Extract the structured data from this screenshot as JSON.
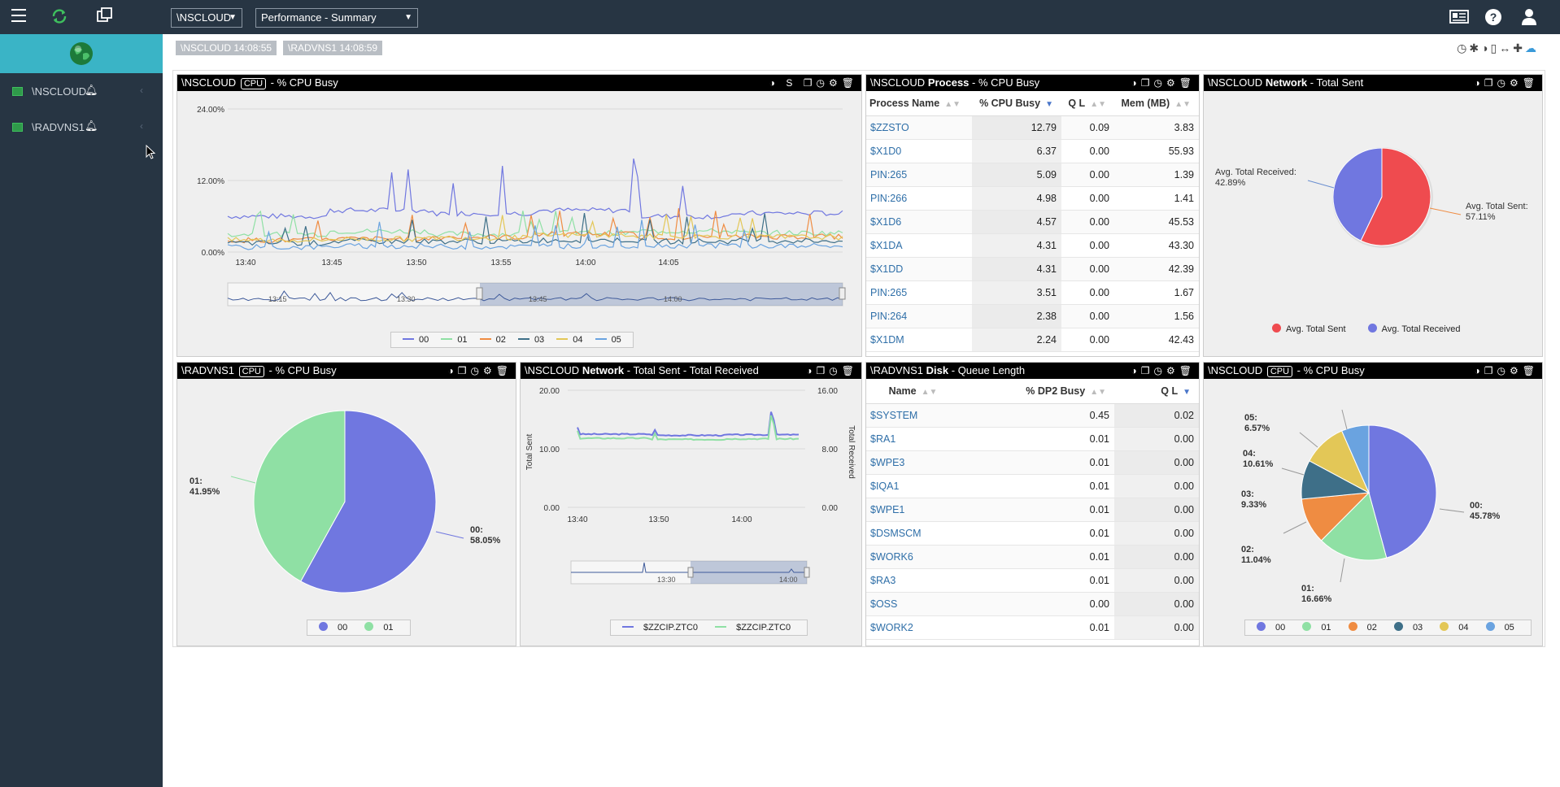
{
  "topbar": {
    "system_select": "\\NSCLOUD",
    "view_select": "Performance - Summary"
  },
  "sidebar": {
    "items": [
      {
        "label": "\\NSCLOUD"
      },
      {
        "label": "\\RADVNS1"
      }
    ]
  },
  "timestamps": [
    "\\NSCLOUD  14:08:55",
    "\\RADVNS1  14:08:59"
  ],
  "panels": {
    "cpu1": {
      "system": "\\NSCLOUD",
      "tag": "CPU",
      "title": "- % CPU Busy",
      "s_label": "S",
      "yticks": [
        "24.00%",
        "12.00%",
        "0.00%"
      ],
      "xticks": [
        "13:40",
        "13:45",
        "13:50",
        "13:55",
        "14:00",
        "14:05"
      ],
      "nav_ticks": [
        "13:15",
        "13:30",
        "13:45",
        "14:00"
      ],
      "legend": [
        "00",
        "01",
        "02",
        "03",
        "04",
        "05"
      ]
    },
    "process": {
      "system": "\\NSCLOUD",
      "bold": "Process",
      "title": "- % CPU Busy",
      "columns": [
        "Process Name",
        "% CPU Busy",
        "Q L",
        "Mem (MB)"
      ],
      "rows": [
        [
          "$ZZSTO",
          "12.79",
          "0.09",
          "3.83"
        ],
        [
          "$X1D0",
          "6.37",
          "0.00",
          "55.93"
        ],
        [
          "PIN:265",
          "5.09",
          "0.00",
          "1.39"
        ],
        [
          "PIN:266",
          "4.98",
          "0.00",
          "1.41"
        ],
        [
          "$X1D6",
          "4.57",
          "0.00",
          "45.53"
        ],
        [
          "$X1DA",
          "4.31",
          "0.00",
          "43.30"
        ],
        [
          "$X1DD",
          "4.31",
          "0.00",
          "42.39"
        ],
        [
          "PIN:265",
          "3.51",
          "0.00",
          "1.67"
        ],
        [
          "PIN:264",
          "2.38",
          "0.00",
          "1.56"
        ],
        [
          "$X1DM",
          "2.24",
          "0.00",
          "42.43"
        ]
      ]
    },
    "network_sent": {
      "system": "\\NSCLOUD",
      "bold": "Network",
      "title": "- Total Sent",
      "label_received": "Avg. Total Received:",
      "label_received_val": "42.89%",
      "label_sent": "Avg. Total Sent:",
      "label_sent_val": "57.11%",
      "legend": [
        "Avg. Total Sent",
        "Avg. Total Received"
      ]
    },
    "cpu2": {
      "system": "\\RADVNS1",
      "tag": "CPU",
      "title": "- % CPU Busy",
      "lbl01": "01:",
      "lbl01v": "41.95%",
      "lbl00": "00:",
      "lbl00v": "58.05%",
      "legend": [
        "00",
        "01"
      ]
    },
    "network_tr": {
      "system": "\\NSCLOUD",
      "bold": "Network",
      "title": "- Total Sent - Total Received",
      "yleft": [
        "20.00",
        "10.00",
        "0.00"
      ],
      "yright": [
        "16.00",
        "8.00",
        "0.00"
      ],
      "ylabel_left": "Total Sent",
      "ylabel_right": "Total Received",
      "xticks": [
        "13:40",
        "13:50",
        "14:00"
      ],
      "nav_ticks": [
        "13:30",
        "14:00"
      ],
      "legend": [
        "$ZZCIP.ZTC0",
        "$ZZCIP.ZTC0"
      ]
    },
    "disk": {
      "system": "\\RADVNS1",
      "bold": "Disk",
      "title": "- Queue Length",
      "columns": [
        "Name",
        "% DP2 Busy",
        "Q L"
      ],
      "rows": [
        [
          "$SYSTEM",
          "0.45",
          "0.02"
        ],
        [
          "$RA1",
          "0.01",
          "0.00"
        ],
        [
          "$WPE3",
          "0.01",
          "0.00"
        ],
        [
          "$IQA1",
          "0.01",
          "0.00"
        ],
        [
          "$WPE1",
          "0.01",
          "0.00"
        ],
        [
          "$DSMSCM",
          "0.01",
          "0.00"
        ],
        [
          "$WORK6",
          "0.01",
          "0.00"
        ],
        [
          "$RA3",
          "0.01",
          "0.00"
        ],
        [
          "$OSS",
          "0.00",
          "0.00"
        ],
        [
          "$WORK2",
          "0.01",
          "0.00"
        ]
      ]
    },
    "cpu3": {
      "system": "\\NSCLOUD",
      "tag": "CPU",
      "title": "- % CPU Busy",
      "labels": [
        {
          "k": "00:",
          "v": "45.78%"
        },
        {
          "k": "01:",
          "v": "16.66%"
        },
        {
          "k": "02:",
          "v": "11.04%"
        },
        {
          "k": "03:",
          "v": "9.33%"
        },
        {
          "k": "04:",
          "v": "10.61%"
        },
        {
          "k": "05:",
          "v": "6.57%"
        }
      ],
      "legend": [
        "00",
        "01",
        "02",
        "03",
        "04",
        "05"
      ]
    }
  },
  "colors": {
    "c00": "#7077e0",
    "c01": "#8fe0a4",
    "c02": "#ef8c42",
    "c03": "#3e6f88",
    "c04": "#e3c757",
    "c05": "#6aa3e0",
    "sent": "#ef4b4f",
    "received": "#7077e0"
  },
  "chart_data": [
    {
      "type": "pie",
      "title": "\\NSCLOUD Network - Total Sent",
      "categories": [
        "Avg. Total Sent",
        "Avg. Total Received"
      ],
      "values": [
        57.11,
        42.89
      ]
    },
    {
      "type": "pie",
      "title": "\\RADVNS1 CPU - % CPU Busy",
      "categories": [
        "00",
        "01"
      ],
      "values": [
        58.05,
        41.95
      ]
    },
    {
      "type": "pie",
      "title": "\\NSCLOUD CPU - % CPU Busy",
      "categories": [
        "00",
        "01",
        "02",
        "03",
        "04",
        "05"
      ],
      "values": [
        45.78,
        16.66,
        11.04,
        9.33,
        10.61,
        6.57
      ]
    },
    {
      "type": "line",
      "title": "\\NSCLOUD CPU - % CPU Busy",
      "ylim": [
        0,
        24
      ],
      "series": [
        {
          "name": "00",
          "values": [
            6,
            7,
            6.5,
            7,
            6,
            6.5
          ]
        },
        {
          "name": "01",
          "values": [
            3,
            3.5,
            3,
            3.2,
            3.5,
            3.2
          ]
        },
        {
          "name": "02",
          "values": [
            2,
            2.2,
            2.5,
            3,
            2.5,
            2.6
          ]
        },
        {
          "name": "03",
          "values": [
            1.5,
            1.8,
            1.8,
            2,
            1.8,
            1.9
          ]
        },
        {
          "name": "04",
          "values": [
            2,
            2.2,
            2.4,
            2.8,
            2.6,
            2.5
          ]
        },
        {
          "name": "05",
          "values": [
            0.8,
            1,
            0.9,
            1,
            1.1,
            1
          ]
        }
      ],
      "categories": [
        "13:40",
        "13:45",
        "13:50",
        "13:55",
        "14:00",
        "14:05"
      ]
    },
    {
      "type": "line",
      "title": "\\NSCLOUD Network - Total Sent - Total Received",
      "categories": [
        "13:40",
        "13:50",
        "14:00"
      ],
      "series": [
        {
          "name": "$ZZCIP.ZTC0",
          "values": [
            12.5,
            12.3,
            12.4
          ]
        },
        {
          "name": "$ZZCIP.ZTC0",
          "values": [
            11.8,
            11.6,
            11.7
          ]
        }
      ]
    }
  ]
}
